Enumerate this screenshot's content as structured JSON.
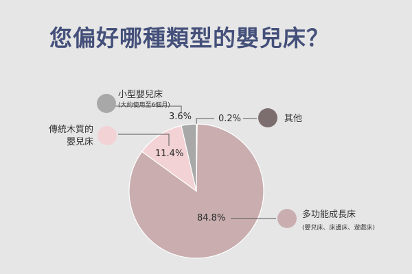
{
  "title": "您偏好哪種類型的嬰兒床？",
  "chart_data": {
    "type": "pie",
    "slices": [
      {
        "name": "多功能成長床",
        "note": "(嬰兒床、床邊床、遊戲床)",
        "value": 84.8,
        "label": "84.8%",
        "color": "#c9adaf"
      },
      {
        "name": "傳統木質的嬰兒床",
        "note": "",
        "value": 11.4,
        "label": "11.4%",
        "color": "#f2d2d5"
      },
      {
        "name": "小型嬰兒床",
        "note": "(大約使用至6個月)",
        "value": 3.6,
        "label": "3.6%",
        "color": "#a8a8a8"
      },
      {
        "name": "其他",
        "note": "",
        "value": 0.2,
        "label": "0.2%",
        "color": "#7c6d6f"
      }
    ]
  }
}
